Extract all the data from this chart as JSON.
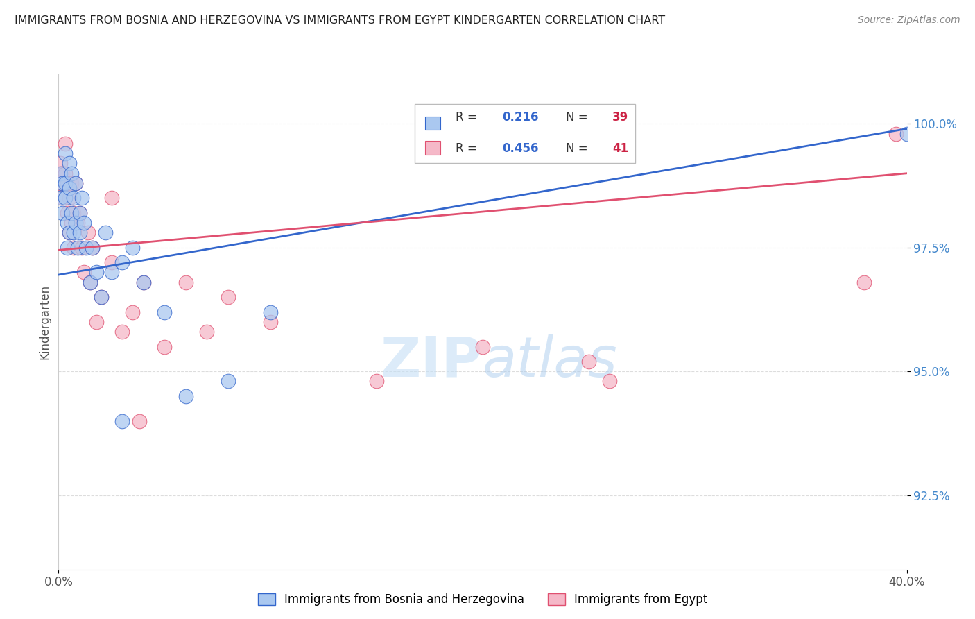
{
  "title": "IMMIGRANTS FROM BOSNIA AND HERZEGOVINA VS IMMIGRANTS FROM EGYPT KINDERGARTEN CORRELATION CHART",
  "source_text": "Source: ZipAtlas.com",
  "ylabel": "Kindergarten",
  "y_tick_labels": [
    "92.5%",
    "95.0%",
    "97.5%",
    "100.0%"
  ],
  "y_tick_values": [
    0.925,
    0.95,
    0.975,
    1.0
  ],
  "xlim": [
    0.0,
    0.4
  ],
  "ylim": [
    0.91,
    1.01
  ],
  "blue_color": "#aac8f0",
  "pink_color": "#f5b8c8",
  "blue_line_color": "#3366cc",
  "pink_line_color": "#e05070",
  "title_color": "#222222",
  "source_color": "#888888",
  "axis_color": "#cccccc",
  "grid_color": "#dddddd",
  "bosnia_x": [
    0.001,
    0.001,
    0.002,
    0.002,
    0.003,
    0.003,
    0.003,
    0.004,
    0.004,
    0.005,
    0.005,
    0.005,
    0.006,
    0.006,
    0.007,
    0.007,
    0.008,
    0.008,
    0.009,
    0.01,
    0.01,
    0.011,
    0.012,
    0.013,
    0.015,
    0.016,
    0.018,
    0.02,
    0.022,
    0.025,
    0.03,
    0.035,
    0.04,
    0.05,
    0.06,
    0.08,
    0.1,
    0.03,
    0.4
  ],
  "bosnia_y": [
    0.99,
    0.985,
    0.988,
    0.982,
    0.994,
    0.988,
    0.985,
    0.98,
    0.975,
    0.992,
    0.987,
    0.978,
    0.99,
    0.982,
    0.985,
    0.978,
    0.988,
    0.98,
    0.975,
    0.982,
    0.978,
    0.985,
    0.98,
    0.975,
    0.968,
    0.975,
    0.97,
    0.965,
    0.978,
    0.97,
    0.972,
    0.975,
    0.968,
    0.962,
    0.945,
    0.948,
    0.962,
    0.94,
    0.998
  ],
  "egypt_x": [
    0.001,
    0.001,
    0.002,
    0.002,
    0.003,
    0.003,
    0.004,
    0.004,
    0.005,
    0.005,
    0.006,
    0.006,
    0.007,
    0.007,
    0.008,
    0.009,
    0.01,
    0.011,
    0.012,
    0.014,
    0.015,
    0.016,
    0.018,
    0.02,
    0.025,
    0.03,
    0.035,
    0.04,
    0.05,
    0.06,
    0.07,
    0.08,
    0.1,
    0.15,
    0.2,
    0.25,
    0.025,
    0.038,
    0.26,
    0.38,
    0.395
  ],
  "egypt_y": [
    0.992,
    0.988,
    0.99,
    0.985,
    0.996,
    0.99,
    0.988,
    0.982,
    0.985,
    0.978,
    0.98,
    0.988,
    0.982,
    0.975,
    0.988,
    0.98,
    0.982,
    0.975,
    0.97,
    0.978,
    0.968,
    0.975,
    0.96,
    0.965,
    0.972,
    0.958,
    0.962,
    0.968,
    0.955,
    0.968,
    0.958,
    0.965,
    0.96,
    0.948,
    0.955,
    0.952,
    0.985,
    0.94,
    0.948,
    0.968,
    0.998
  ],
  "bosnia_trend_x": [
    0.0,
    0.4
  ],
  "bosnia_trend_y": [
    0.9695,
    0.999
  ],
  "egypt_trend_x": [
    0.0,
    0.4
  ],
  "egypt_trend_y": [
    0.9745,
    0.99
  ]
}
